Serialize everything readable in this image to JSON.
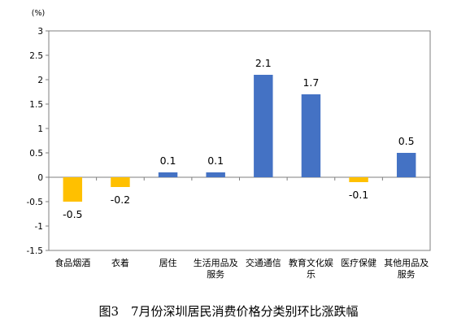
{
  "chart_data": {
    "type": "bar",
    "title": "图3　7月份深圳居民消费价格分类别环比涨跌幅",
    "unit": "(%)",
    "ylim": [
      -1.5,
      3
    ],
    "yticks": [
      "3",
      "2.5",
      "2",
      "1.5",
      "1",
      "0.5",
      "0",
      "-0.5",
      "-1",
      "-1.5"
    ],
    "ytick_values": [
      3,
      2.5,
      2,
      1.5,
      1,
      0.5,
      0,
      -0.5,
      -1,
      -1.5
    ],
    "grid": false,
    "categories": [
      [
        "食品烟酒"
      ],
      [
        "衣着"
      ],
      [
        "居住"
      ],
      [
        "生活用品及",
        "服务"
      ],
      [
        "交通通信"
      ],
      [
        "教育文化娱",
        "乐"
      ],
      [
        "医疗保健"
      ],
      [
        "其他用品及",
        "服务"
      ]
    ],
    "values": [
      -0.5,
      -0.2,
      0.1,
      0.1,
      2.1,
      1.7,
      -0.1,
      0.5
    ],
    "value_labels": [
      "-0.5",
      "-0.2",
      "0.1",
      "0.1",
      "2.1",
      "1.7",
      "-0.1",
      "0.5"
    ],
    "colors": {
      "positive": "#4472C4",
      "negative": "#FFC000",
      "axis": "#7F7F7F"
    }
  }
}
